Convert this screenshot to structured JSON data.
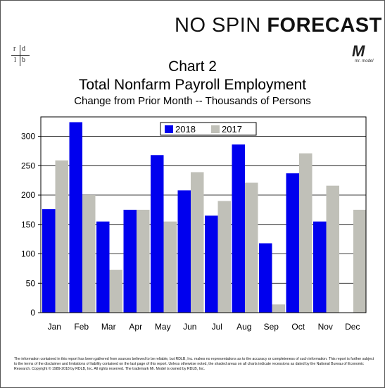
{
  "brand": {
    "part1": "NO SPIN ",
    "part2": "FORECAST"
  },
  "logos": {
    "rdlb": {
      "r": "r",
      "d": "d",
      "l": "l",
      "b": "b"
    },
    "mr_model": {
      "mark": "M",
      "caption": "mr. model"
    }
  },
  "disclaimer": {
    "text": "The information contained in this report has been gathered from sources believed to be reliable, but RDLB, Inc. makes no representations as to the accuracy or completeness of such information. This report is further subject to the terms of the disclaimer and limitations of liability contained on the last page of this report. Unless otherwise noted, the shaded areas on all charts indicate recessions as dated by the National Bureau of Economic Research. Copyright © 1989-2018 by RDLB, Inc. All rights reserved. The trademark Mr. Model is owned by RDLB, Inc."
  },
  "chart_data": {
    "type": "bar",
    "title": "Chart 2",
    "title2": "Total Nonfarm Payroll Employment",
    "subtitle": "Change from Prior Month -- Thousands of Persons",
    "categories": [
      "Jan",
      "Feb",
      "Mar",
      "Apr",
      "May",
      "Jun",
      "Jul",
      "Aug",
      "Sep",
      "Oct",
      "Nov",
      "Dec"
    ],
    "series": [
      {
        "name": "2018",
        "color": "#0000ee",
        "values": [
          176,
          324,
          155,
          175,
          268,
          208,
          165,
          286,
          118,
          237,
          155,
          null
        ]
      },
      {
        "name": "2017",
        "color": "#c0c0b8",
        "values": [
          259,
          200,
          73,
          175,
          155,
          239,
          190,
          221,
          14,
          271,
          216,
          175
        ]
      }
    ],
    "ylim": [
      0,
      333
    ],
    "yticks": [
      0,
      50,
      100,
      150,
      200,
      250,
      300
    ],
    "grid": true,
    "legend_position": "top-center"
  }
}
